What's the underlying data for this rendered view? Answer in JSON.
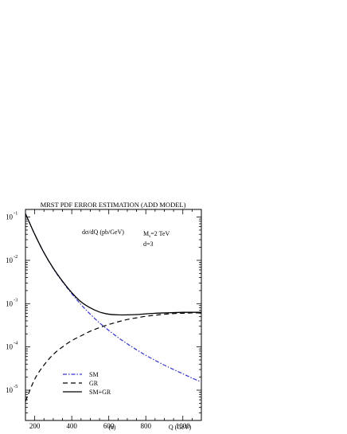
{
  "chart_data": {
    "type": "line",
    "title": "MRST PDF ERROR ESTIMATION (ADD MODEL)",
    "xlabel": "Q (GeV)",
    "ylabel": "",
    "panel_label": "(a)",
    "xlim": [
      150,
      1100
    ],
    "ylog": true,
    "ylim": [
      2e-06,
      0.15
    ],
    "x_ticks": [
      {
        "value": 200,
        "label": "200"
      },
      {
        "value": 400,
        "label": "400"
      },
      {
        "value": 600,
        "label": "600"
      },
      {
        "value": 800,
        "label": "800"
      },
      {
        "value": 1000,
        "label": "1000"
      }
    ],
    "y_ticks": [
      {
        "value": 0.1,
        "base": "10",
        "exp": "-1"
      },
      {
        "value": 0.01,
        "base": "10",
        "exp": "-2"
      },
      {
        "value": 0.001,
        "base": "10",
        "exp": "-3"
      },
      {
        "value": 0.0001,
        "base": "10",
        "exp": "-4"
      },
      {
        "value": 1e-05,
        "base": "10",
        "exp": "-5"
      }
    ],
    "annotations": {
      "quantity": "dσ/dQ (pb/GeV)",
      "mass_prefix": "M",
      "mass_sub": "s",
      "mass_suffix": "=2 TeV",
      "dimension": "d=3"
    },
    "legend_position": "bottom-left",
    "series": [
      {
        "name": "SM",
        "color": "#3333cc",
        "dash": "dash-dot",
        "x": [
          150,
          200,
          250,
          300,
          350,
          400,
          450,
          500,
          550,
          600,
          650,
          700,
          750,
          800,
          850,
          900,
          950,
          1000,
          1050,
          1100
        ],
        "y": [
          0.12,
          0.04,
          0.015,
          0.0065,
          0.0032,
          0.0017,
          0.00095,
          0.00057,
          0.00036,
          0.00024,
          0.000165,
          0.000118,
          8.6e-05,
          6.4e-05,
          4.9e-05,
          3.8e-05,
          3e-05,
          2.4e-05,
          1.9e-05,
          1.55e-05
        ]
      },
      {
        "name": "GR",
        "color": "#000000",
        "dash": "dashed",
        "x": [
          150,
          200,
          250,
          300,
          350,
          400,
          450,
          500,
          550,
          600,
          650,
          700,
          750,
          800,
          850,
          900,
          950,
          1000,
          1050,
          1100
        ],
        "y": [
          5.5e-06,
          1.8e-05,
          3.8e-05,
          6.7e-05,
          0.0001,
          0.00014,
          0.00018,
          0.00023,
          0.00028,
          0.00033,
          0.00038,
          0.00043,
          0.00047,
          0.00051,
          0.00054,
          0.00057,
          0.00059,
          0.0006,
          0.00061,
          0.00061
        ]
      },
      {
        "name": "SM+GR",
        "color": "#000000",
        "dash": "solid",
        "x": [
          150,
          200,
          250,
          300,
          350,
          400,
          450,
          500,
          550,
          600,
          650,
          700,
          750,
          800,
          850,
          900,
          950,
          1000,
          1050,
          1100
        ],
        "y": [
          0.12,
          0.04,
          0.015,
          0.0066,
          0.0033,
          0.0018,
          0.0011,
          0.0008,
          0.00064,
          0.00057,
          0.00055,
          0.00055,
          0.00056,
          0.00058,
          0.0006,
          0.00061,
          0.00062,
          0.00063,
          0.00063,
          0.00063
        ]
      }
    ]
  }
}
